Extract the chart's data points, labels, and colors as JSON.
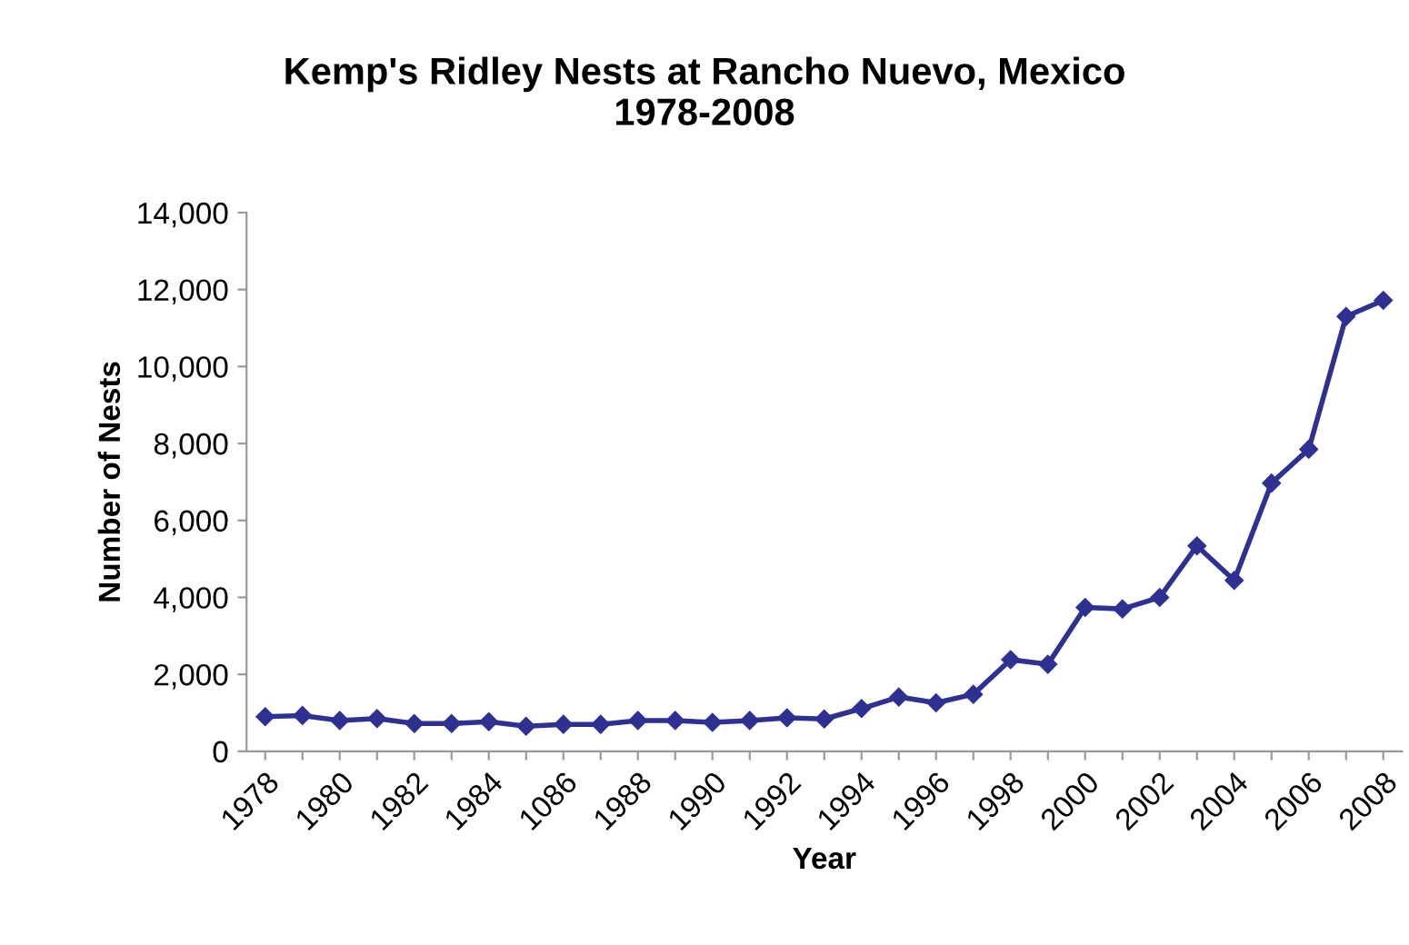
{
  "chart_data": {
    "type": "line",
    "title": "Kemp's Ridley Nests at Rancho Nuevo, Mexico\n1978-2008",
    "xlabel": "Year",
    "ylabel": "Number of Nests",
    "categories": [
      "1978",
      null,
      "1980",
      null,
      "1982",
      null,
      "1984",
      null,
      "1086",
      null,
      "1988",
      null,
      "1990",
      null,
      "1992",
      null,
      "1994",
      null,
      "1996",
      null,
      "1998",
      null,
      "2000",
      null,
      "2002",
      null,
      "2004",
      null,
      "2006",
      null,
      "2008"
    ],
    "series": [
      {
        "color": "#2e3192",
        "values": [
          900,
          930,
          800,
          850,
          720,
          720,
          770,
          650,
          700,
          700,
          800,
          800,
          750,
          800,
          870,
          840,
          1110,
          1410,
          1260,
          1480,
          2380,
          2260,
          3740,
          3700,
          4000,
          5340,
          4440,
          6970,
          7850,
          11300,
          11720
        ]
      }
    ],
    "ylim": [
      0,
      14000
    ],
    "yticks": [
      {
        "value": 0,
        "label": "0"
      },
      {
        "value": 2000,
        "label": "2,000"
      },
      {
        "value": 4000,
        "label": "4,000"
      },
      {
        "value": 6000,
        "label": "6,000"
      },
      {
        "value": 8000,
        "label": "8,000"
      },
      {
        "value": 10000,
        "label": "10,000"
      },
      {
        "value": 12000,
        "label": "12,000"
      },
      {
        "value": 14000,
        "label": "14,000"
      }
    ],
    "grid": false,
    "legend": false,
    "marker": "diamond",
    "line_style": "solid"
  }
}
